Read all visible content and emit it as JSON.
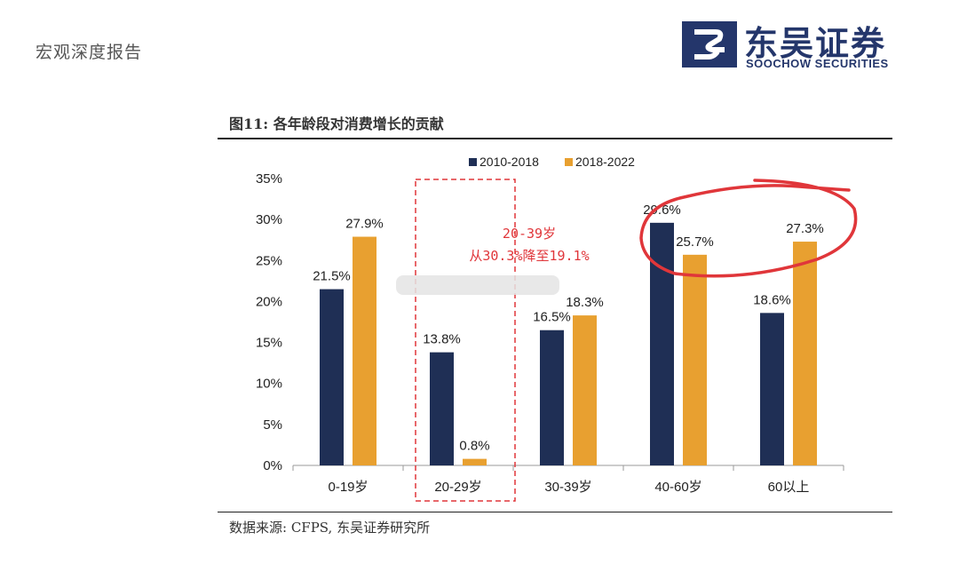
{
  "header": {
    "report_type": "宏观深度报告",
    "brand_cn": "东吴证券",
    "brand_en": "SOOCHOW SECURITIES",
    "brand_color": "#24366b"
  },
  "figure": {
    "title": "图11:  各年龄段对消费增长的贡献",
    "source": "数据来源:  CFPS,  东吴证券研究所"
  },
  "chart_data": {
    "type": "bar",
    "categories": [
      "0-19岁",
      "20-29岁",
      "30-39岁",
      "40-60岁",
      "60以上"
    ],
    "series": [
      {
        "name": "2010-2018",
        "color": "#1f2f55",
        "values": [
          21.5,
          13.8,
          16.5,
          29.6,
          18.6
        ],
        "labels": [
          "21.5%",
          "13.8%",
          "16.5%",
          "29.6%",
          "18.6%"
        ]
      },
      {
        "name": "2018-2022",
        "color": "#e8a030",
        "values": [
          27.9,
          0.8,
          18.3,
          25.7,
          27.3
        ],
        "labels": [
          "27.9%",
          "0.8%",
          "18.3%",
          "25.7%",
          "27.3%"
        ]
      }
    ],
    "yticks": [
      "0%",
      "5%",
      "10%",
      "15%",
      "20%",
      "25%",
      "30%",
      "35%"
    ],
    "ylim": [
      0,
      35
    ],
    "legend_position": "top",
    "annotation": {
      "line1": "20-39岁",
      "line2": "从30.3%降至19.1%",
      "color": "#e0363a"
    }
  }
}
